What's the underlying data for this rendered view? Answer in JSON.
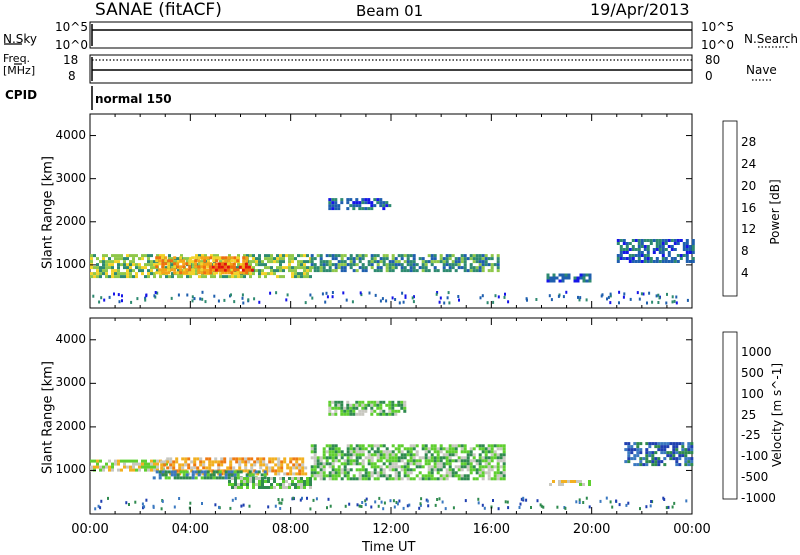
{
  "header": {
    "station": "SANAE (fitACF)",
    "beam": "Beam 01",
    "date": "19/Apr/2013"
  },
  "noise_panel": {
    "left_label": "N.Sky",
    "right_label": "N.Search",
    "left_ticks": [
      "10^5",
      "10^0"
    ],
    "right_ticks": [
      "10^5",
      "10^0"
    ]
  },
  "freq_panel": {
    "left_label_1": "Freq.",
    "left_label_2": "[MHz]",
    "right_label": "Nave",
    "left_ticks": [
      "18",
      "8"
    ],
    "right_ticks": [
      "80",
      "0"
    ]
  },
  "cpid_panel": {
    "label": "CPID",
    "mode": "normal 150"
  },
  "time_axis": {
    "label": "Time UT",
    "ticks": [
      "00:00",
      "04:00",
      "08:00",
      "12:00",
      "16:00",
      "20:00",
      "00:00"
    ]
  },
  "chart_data": [
    {
      "type": "heatmap",
      "quantity": "power",
      "ylabel": "Slant Range [km]",
      "yticks": [
        "1000",
        "2000",
        "3000",
        "4000"
      ],
      "ylim": [
        0,
        4500
      ],
      "xlim_hours": [
        0,
        24
      ],
      "colorbar": {
        "label": "Power [dB]",
        "ticks": [
          "4",
          "8",
          "12",
          "16",
          "20",
          "24",
          "28"
        ],
        "colors": [
          "#1515e8",
          "#1f5fae",
          "#2e8a70",
          "#8fc84a",
          "#f2d32a",
          "#f4a317",
          "#ef6f10",
          "#e01010"
        ]
      },
      "regions": [
        {
          "t": [
            0.0,
            8.8
          ],
          "r": [
            700,
            1250
          ],
          "level": 3
        },
        {
          "t": [
            2.6,
            6.2
          ],
          "r": [
            850,
            1200
          ],
          "level": 5
        },
        {
          "t": [
            4.5,
            6.5
          ],
          "r": [
            850,
            1050
          ],
          "level": 6
        },
        {
          "t": [
            8.8,
            16.3
          ],
          "r": [
            850,
            1250
          ],
          "level": 2
        },
        {
          "t": [
            9.5,
            12.0
          ],
          "r": [
            2300,
            2550
          ],
          "level": 1
        },
        {
          "t": [
            18.2,
            19.9
          ],
          "r": [
            650,
            800
          ],
          "level": 1
        },
        {
          "t": [
            21.0,
            24.0
          ],
          "r": [
            1100,
            1600
          ],
          "level": 1
        }
      ]
    },
    {
      "type": "heatmap",
      "quantity": "velocity",
      "ylabel": "Slant Range [km]",
      "yticks": [
        "1000",
        "2000",
        "3000",
        "4000"
      ],
      "ylim": [
        0,
        4500
      ],
      "xlim_hours": [
        0,
        24
      ],
      "colorbar": {
        "label": "Velocity [m s^-1]",
        "ticks": [
          "1000",
          "500",
          "100",
          "25",
          "-25",
          "-100",
          "-500",
          "-1000"
        ],
        "colors": [
          "#1f3fb0",
          "#3a78c0",
          "#2f8a4e",
          "#5fcf30",
          "#c8c8c0",
          "#f2b020",
          "#ef7a10",
          "#e02020"
        ]
      },
      "regions": [
        {
          "t": [
            0.0,
            3.0
          ],
          "r": [
            1000,
            1250
          ],
          "level": 4
        },
        {
          "t": [
            2.8,
            8.6
          ],
          "r": [
            950,
            1300
          ],
          "level": 5
        },
        {
          "t": [
            2.5,
            7.0
          ],
          "r": [
            800,
            1000
          ],
          "level": 2
        },
        {
          "t": [
            5.5,
            8.8
          ],
          "r": [
            600,
            850
          ],
          "level": 3
        },
        {
          "t": [
            8.8,
            16.5
          ],
          "r": [
            800,
            1600
          ],
          "level": 3
        },
        {
          "t": [
            9.5,
            12.5
          ],
          "r": [
            2300,
            2600
          ],
          "level": 3
        },
        {
          "t": [
            18.3,
            19.9
          ],
          "r": [
            650,
            780
          ],
          "level": 4
        },
        {
          "t": [
            21.3,
            24.0
          ],
          "r": [
            1100,
            1650
          ],
          "level": 1
        }
      ]
    }
  ]
}
